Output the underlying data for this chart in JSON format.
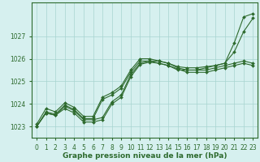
{
  "xlabel": "Graphe pression niveau de la mer (hPa)",
  "ylabel": "",
  "x": [
    0,
    1,
    2,
    3,
    4,
    5,
    6,
    7,
    8,
    9,
    10,
    11,
    12,
    13,
    14,
    15,
    16,
    17,
    18,
    19,
    20,
    21,
    22,
    23
  ],
  "series": [
    [
      1023.0,
      1023.6,
      1023.5,
      1023.9,
      1023.7,
      1023.3,
      1023.3,
      1023.4,
      1024.1,
      1024.4,
      1025.3,
      1025.8,
      1025.9,
      1025.9,
      1025.8,
      1025.6,
      1025.5,
      1025.5,
      1025.5,
      1025.6,
      1025.7,
      1025.8,
      1025.9,
      1025.8
    ],
    [
      1023.0,
      1023.6,
      1023.5,
      1023.8,
      1023.6,
      1023.2,
      1023.2,
      1023.3,
      1024.0,
      1024.3,
      1025.2,
      1025.75,
      1025.85,
      1025.8,
      1025.7,
      1025.55,
      1025.4,
      1025.4,
      1025.4,
      1025.5,
      1025.6,
      1025.7,
      1025.8,
      1025.7
    ],
    [
      1023.0,
      1023.65,
      1023.55,
      1023.95,
      1023.75,
      1023.35,
      1023.35,
      1024.2,
      1024.4,
      1024.7,
      1025.4,
      1025.9,
      1025.9,
      1025.8,
      1025.7,
      1025.5,
      1025.5,
      1025.5,
      1025.6,
      1025.7,
      1025.8,
      1026.3,
      1027.2,
      1027.8
    ],
    [
      1023.1,
      1023.8,
      1023.65,
      1024.05,
      1023.85,
      1023.45,
      1023.45,
      1024.3,
      1024.5,
      1024.8,
      1025.5,
      1026.0,
      1026.0,
      1025.9,
      1025.8,
      1025.65,
      1025.6,
      1025.6,
      1025.65,
      1025.7,
      1025.8,
      1026.7,
      1027.85,
      1028.0
    ]
  ],
  "line_color": "#2d6a2d",
  "marker": "D",
  "marker_size": 2.0,
  "bg_color": "#d6f0ef",
  "grid_color": "#a8d4d0",
  "axis_bg": "#d6f0ef",
  "ylim": [
    1022.5,
    1028.5
  ],
  "xlim": [
    -0.5,
    23.5
  ],
  "yticks": [
    1023,
    1024,
    1025,
    1026,
    1027
  ],
  "xticks": [
    0,
    1,
    2,
    3,
    4,
    5,
    6,
    7,
    8,
    9,
    10,
    11,
    12,
    13,
    14,
    15,
    16,
    17,
    18,
    19,
    20,
    21,
    22,
    23
  ],
  "tick_fontsize": 5.5,
  "xlabel_fontsize": 6.5,
  "border_color": "#2d6a2d",
  "linewidth": 0.8
}
